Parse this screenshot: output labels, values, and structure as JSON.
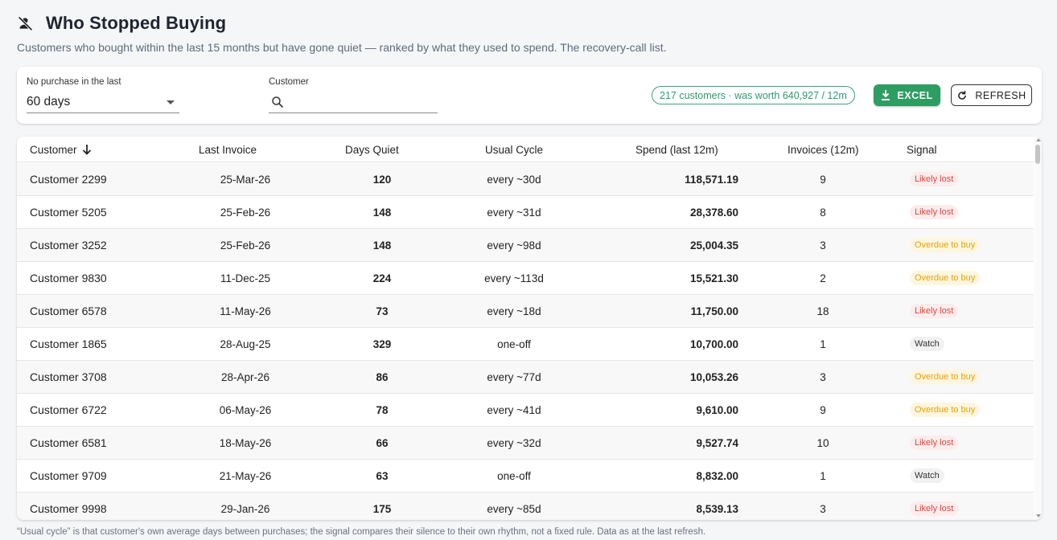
{
  "header": {
    "title": "Who Stopped Buying",
    "title_icon": "person-off-icon",
    "subtitle": "Customers who bought within the last 15 months but have gone quiet — ranked by what they used to spend. The recovery-call list."
  },
  "filters": {
    "period_label": "No purchase in the last",
    "period_value": "60 days",
    "customer_label": "Customer",
    "customer_value": "",
    "summary": "217 customers · was worth 640,927 / 12m",
    "excel_label": "EXCEL",
    "refresh_label": "REFRESH"
  },
  "table": {
    "columns": {
      "customer": "Customer",
      "last_invoice": "Last Invoice",
      "days_quiet": "Days Quiet",
      "usual_cycle": "Usual Cycle",
      "spend": "Spend (last 12m)",
      "invoices": "Invoices (12m)",
      "signal": "Signal"
    },
    "sort": {
      "column": "customer",
      "direction": "desc"
    },
    "rows": [
      {
        "customer": "Customer 2299",
        "last_invoice": "25-Mar-26",
        "days_quiet": "120",
        "usual_cycle": "every ~30d",
        "spend": "118,571.19",
        "invoices": "9",
        "signal": "Likely lost",
        "signal_type": "lost"
      },
      {
        "customer": "Customer 5205",
        "last_invoice": "25-Feb-26",
        "days_quiet": "148",
        "usual_cycle": "every ~31d",
        "spend": "28,378.60",
        "invoices": "8",
        "signal": "Likely lost",
        "signal_type": "lost"
      },
      {
        "customer": "Customer 3252",
        "last_invoice": "25-Feb-26",
        "days_quiet": "148",
        "usual_cycle": "every ~98d",
        "spend": "25,004.35",
        "invoices": "3",
        "signal": "Overdue to buy",
        "signal_type": "overdue"
      },
      {
        "customer": "Customer 9830",
        "last_invoice": "11-Dec-25",
        "days_quiet": "224",
        "usual_cycle": "every ~113d",
        "spend": "15,521.30",
        "invoices": "2",
        "signal": "Overdue to buy",
        "signal_type": "overdue"
      },
      {
        "customer": "Customer 6578",
        "last_invoice": "11-May-26",
        "days_quiet": "73",
        "usual_cycle": "every ~18d",
        "spend": "11,750.00",
        "invoices": "18",
        "signal": "Likely lost",
        "signal_type": "lost"
      },
      {
        "customer": "Customer 1865",
        "last_invoice": "28-Aug-25",
        "days_quiet": "329",
        "usual_cycle": "one-off",
        "spend": "10,700.00",
        "invoices": "1",
        "signal": "Watch",
        "signal_type": "watch"
      },
      {
        "customer": "Customer 3708",
        "last_invoice": "28-Apr-26",
        "days_quiet": "86",
        "usual_cycle": "every ~77d",
        "spend": "10,053.26",
        "invoices": "3",
        "signal": "Overdue to buy",
        "signal_type": "overdue"
      },
      {
        "customer": "Customer 6722",
        "last_invoice": "06-May-26",
        "days_quiet": "78",
        "usual_cycle": "every ~41d",
        "spend": "9,610.00",
        "invoices": "9",
        "signal": "Overdue to buy",
        "signal_type": "overdue"
      },
      {
        "customer": "Customer 6581",
        "last_invoice": "18-May-26",
        "days_quiet": "66",
        "usual_cycle": "every ~32d",
        "spend": "9,527.74",
        "invoices": "10",
        "signal": "Likely lost",
        "signal_type": "lost"
      },
      {
        "customer": "Customer 9709",
        "last_invoice": "21-May-26",
        "days_quiet": "63",
        "usual_cycle": "one-off",
        "spend": "8,832.00",
        "invoices": "1",
        "signal": "Watch",
        "signal_type": "watch"
      },
      {
        "customer": "Customer 9998",
        "last_invoice": "29-Jan-26",
        "days_quiet": "175",
        "usual_cycle": "every ~85d",
        "spend": "8,539.13",
        "invoices": "3",
        "signal": "Likely lost",
        "signal_type": "lost"
      }
    ]
  },
  "footnote": "“Usual cycle” is that customer's own average days between purchases; the signal compares their silence to their own rhythm, not a fixed rule. Data as at the last refresh.",
  "colors": {
    "accent_green": "#2e9d62",
    "lost": "#e0463e",
    "overdue": "#e8a200"
  }
}
